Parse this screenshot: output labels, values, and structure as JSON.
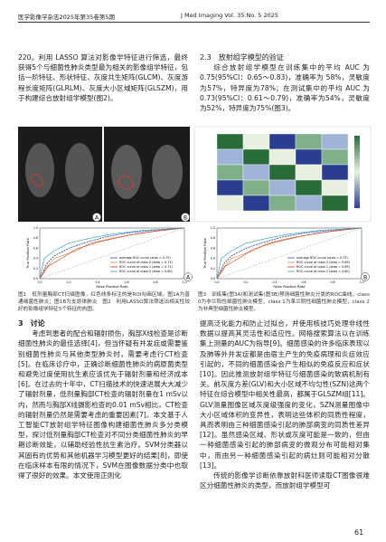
{
  "header": {
    "left": "医学影像学杂志2025年第35卷第5期",
    "right": "J Med Imaging Vol. 35 No. 5 2025"
  },
  "top": {
    "left_paragraph": "220。利用 LASSO 算法对影像学特征进行筛选，最终获得5个与细菌性肺炎类型最为相关的影像组学特征，包括一阶特征、形状特征、灰度共生矩阵(GLCM)、灰度游程长度矩阵(GLRLM)、灰度大小区域矩阵(GLSZM)，用于构建综合放射组学模型(图2)。",
    "right_heading": "2.3　放射组学模型的验证",
    "right_paragraph": "综合放射组学模型在训练集中的平均 AUC 为 0.75(95%CI：0.65～0.83)，准确率为 58%，灵敏度为57%，特异度为78%；在测试集中的平均 AUC 为 0.73(95%CI：0.61～0.79)，准确率为54%，灵敏度为52%，特异度为75%(图3)。"
  },
  "figure": {
    "fig1_labels": [
      "A",
      "B"
    ],
    "fig3_labels": [
      "A",
      "B"
    ],
    "y_axis_label": "True Positive Rate",
    "x_axis_label": "False Positive Rate",
    "ticks": [
      "0.0",
      "0.2",
      "0.4",
      "0.6",
      "0.8",
      "1.0"
    ],
    "roc": [
      {
        "legend": [
          "average ROC curve (area = 0.75)",
          "ROC curve of class 0 (area = 0.73)",
          "ROC curve of class 1 (area = 0.71)",
          "ROC curve of class 2 (area = 0.80)"
        ]
      },
      {
        "legend": [
          "average ROC curve (area = 0.73)",
          "ROC curve of class 0 (area = 0.69)",
          "ROC curve of class 1 (area = 0.69)",
          "ROC curve of class 2 (area = 0.80)"
        ]
      }
    ]
  },
  "captions": {
    "left": "图1　低剂量胸部CT扫描图像，红色线条标注的是ROI勾画区域。图1A为普通细菌性肺炎；图1B为支原体肺炎　图2　利用LASSO算法筛选出相关性较好的影像组学特征5个特征的热图。",
    "right": "图3　训练集(图3A)和测试集(图3B)预测细菌性肺炎分类的ROC曲线，class 0为非兰阳性细菌性肺炎模型，class 1为革兰阴性细菌性肺炎模型，class 2为非典型细菌性肺炎模型。"
  },
  "section": {
    "heading": "3　讨论",
    "left_paragraph": "考虑到患者的配合和辐射损伤，胸部X线检查是诊断细菌性肺炎的最佳选择[4]，但当怀疑有并发症或需要鉴别细菌性肺炎与其他类型肺炎时，需要考虑行CT检查[5]。在临床诊疗中，正确诊断细菌性肺炎的病原菌类型和避免过度使用抗生素应该优先于辐射剂量和经济成本[6]。在过去的十年中，CT扫描技术的快速进展大大减少了辐射剂量，低剂量胸部CT检查的辐射剂量在1 mSv以内，然而与胸部X线摄影检查的0.01 mSv相比，CT检查的辐射剂量仍然是需要考虑的重要因素[7]。本文基于人工智能CT放射组学特征图像构建细菌性肺炎多分类模型，探讨低剂量胸部CT检查对不同分类细菌性肺炎的早期诊断效能，以辅助经验性抗生素治疗。SVM分类器以其固有的优势和其他机器学习模型更好的结果[8]，即使在临床样本有限的情况下，SVM在图像数据分类中也取得了很好的效果。本文使用正则化",
    "right_paragraph_1": "提高泛化能力和防止过拟合，并使用核技巧处理非线性数据以提高其灵活性和适应性。网格搜索算法以在训练集上测量的AUC为指导[9]。细菌感染的许多临床表现以及肺等外并发症都是由宿主产生的免疫病理和炎症效应引起的，不同的细菌感染会产生相似的免疫反应和症状[10]。因此推测放射组学特征与细菌感染的致病机制有关。前灰度方差(GLV)和大小区域不均匀性(SZN)这两个特征在综合模型中相关性最高，都属于GLSZM组[11]。GLV测量图像区域灰度级强度的变化，SZN测量图像中大小区域体积的变异性，表明这些体积的同质性程度，具而表明由三种细菌感染引起的肺部病变的同质性差异[12]。虽然感染区域、形状或灰度可能是一致的，但由一种细菌感染引起的肺部病变的微观分布可能相对集中，而由另一种细菌感染引起的病灶则可能相对分散[13]。",
    "right_paragraph_2": "传统的影像学诊断依靠放射科医师读取CT图像很难区分细菌性肺炎的类型，而放射组学模型可"
  },
  "page_number": "61"
}
